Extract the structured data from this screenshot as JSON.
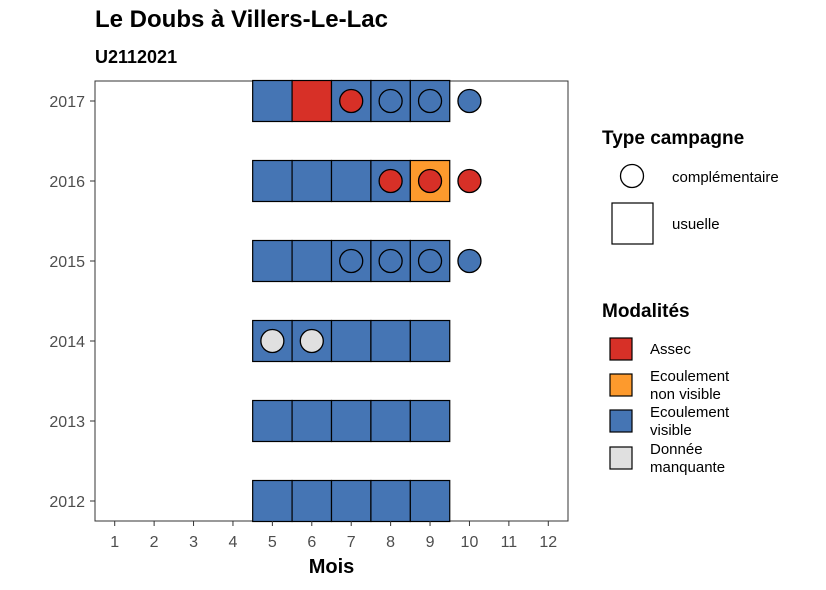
{
  "chart_data": {
    "type": "heatmap",
    "title": "Le Doubs à Villers-Le-Lac",
    "subtitle": "U2112021",
    "xlabel": "Mois",
    "ylabel": "",
    "x_ticks": [
      "1",
      "2",
      "3",
      "4",
      "5",
      "6",
      "7",
      "8",
      "9",
      "10",
      "11",
      "12"
    ],
    "y_ticks": [
      "2012",
      "2013",
      "2014",
      "2015",
      "2016",
      "2017"
    ],
    "xlim": [
      0.5,
      12.5
    ],
    "grid": false,
    "colors": {
      "Assec": "#d73027",
      "Ecoulement non visible": "#fd9a2d",
      "Ecoulement visible": "#4575b4",
      "Donnée manquante": "#e0e0e0"
    },
    "legend_type": {
      "title": "Type campagne",
      "items": [
        "complémentaire",
        "usuelle"
      ]
    },
    "legend_modalites": {
      "title": "Modalités",
      "items": [
        {
          "label": "Assec",
          "key": "Assec"
        },
        {
          "label": "Ecoulement\nnon visible",
          "key": "Ecoulement non visible"
        },
        {
          "label": "Ecoulement\nvisible",
          "key": "Ecoulement visible"
        },
        {
          "label": "Donnée\nmanquante",
          "key": "Donnée manquante"
        }
      ]
    },
    "points": [
      {
        "year": "2012",
        "month": 5,
        "type": "usuelle",
        "modalite": "Ecoulement visible"
      },
      {
        "year": "2012",
        "month": 6,
        "type": "usuelle",
        "modalite": "Ecoulement visible"
      },
      {
        "year": "2012",
        "month": 7,
        "type": "usuelle",
        "modalite": "Ecoulement visible"
      },
      {
        "year": "2012",
        "month": 8,
        "type": "usuelle",
        "modalite": "Ecoulement visible"
      },
      {
        "year": "2012",
        "month": 9,
        "type": "usuelle",
        "modalite": "Ecoulement visible"
      },
      {
        "year": "2013",
        "month": 5,
        "type": "usuelle",
        "modalite": "Ecoulement visible"
      },
      {
        "year": "2013",
        "month": 6,
        "type": "usuelle",
        "modalite": "Ecoulement visible"
      },
      {
        "year": "2013",
        "month": 7,
        "type": "usuelle",
        "modalite": "Ecoulement visible"
      },
      {
        "year": "2013",
        "month": 8,
        "type": "usuelle",
        "modalite": "Ecoulement visible"
      },
      {
        "year": "2013",
        "month": 9,
        "type": "usuelle",
        "modalite": "Ecoulement visible"
      },
      {
        "year": "2014",
        "month": 5,
        "type": "usuelle",
        "modalite": "Ecoulement visible"
      },
      {
        "year": "2014",
        "month": 6,
        "type": "usuelle",
        "modalite": "Ecoulement visible"
      },
      {
        "year": "2014",
        "month": 7,
        "type": "usuelle",
        "modalite": "Ecoulement visible"
      },
      {
        "year": "2014",
        "month": 8,
        "type": "usuelle",
        "modalite": "Ecoulement visible"
      },
      {
        "year": "2014",
        "month": 9,
        "type": "usuelle",
        "modalite": "Ecoulement visible"
      },
      {
        "year": "2014",
        "month": 5,
        "type": "complémentaire",
        "modalite": "Donnée manquante"
      },
      {
        "year": "2014",
        "month": 6,
        "type": "complémentaire",
        "modalite": "Donnée manquante"
      },
      {
        "year": "2015",
        "month": 5,
        "type": "usuelle",
        "modalite": "Ecoulement visible"
      },
      {
        "year": "2015",
        "month": 6,
        "type": "usuelle",
        "modalite": "Ecoulement visible"
      },
      {
        "year": "2015",
        "month": 7,
        "type": "usuelle",
        "modalite": "Ecoulement visible"
      },
      {
        "year": "2015",
        "month": 8,
        "type": "usuelle",
        "modalite": "Ecoulement visible"
      },
      {
        "year": "2015",
        "month": 9,
        "type": "usuelle",
        "modalite": "Ecoulement visible"
      },
      {
        "year": "2015",
        "month": 7,
        "type": "complémentaire",
        "modalite": "Ecoulement visible"
      },
      {
        "year": "2015",
        "month": 8,
        "type": "complémentaire",
        "modalite": "Ecoulement visible"
      },
      {
        "year": "2015",
        "month": 9,
        "type": "complémentaire",
        "modalite": "Ecoulement visible"
      },
      {
        "year": "2015",
        "month": 10,
        "type": "complémentaire",
        "modalite": "Ecoulement visible"
      },
      {
        "year": "2016",
        "month": 5,
        "type": "usuelle",
        "modalite": "Ecoulement visible"
      },
      {
        "year": "2016",
        "month": 6,
        "type": "usuelle",
        "modalite": "Ecoulement visible"
      },
      {
        "year": "2016",
        "month": 7,
        "type": "usuelle",
        "modalite": "Ecoulement visible"
      },
      {
        "year": "2016",
        "month": 8,
        "type": "usuelle",
        "modalite": "Ecoulement visible"
      },
      {
        "year": "2016",
        "month": 9,
        "type": "usuelle",
        "modalite": "Ecoulement non visible"
      },
      {
        "year": "2016",
        "month": 8,
        "type": "complémentaire",
        "modalite": "Assec"
      },
      {
        "year": "2016",
        "month": 9,
        "type": "complémentaire",
        "modalite": "Assec"
      },
      {
        "year": "2016",
        "month": 10,
        "type": "complémentaire",
        "modalite": "Assec"
      },
      {
        "year": "2017",
        "month": 5,
        "type": "usuelle",
        "modalite": "Ecoulement visible"
      },
      {
        "year": "2017",
        "month": 6,
        "type": "usuelle",
        "modalite": "Assec"
      },
      {
        "year": "2017",
        "month": 7,
        "type": "usuelle",
        "modalite": "Ecoulement visible"
      },
      {
        "year": "2017",
        "month": 8,
        "type": "usuelle",
        "modalite": "Ecoulement visible"
      },
      {
        "year": "2017",
        "month": 9,
        "type": "usuelle",
        "modalite": "Ecoulement visible"
      },
      {
        "year": "2017",
        "month": 7,
        "type": "complémentaire",
        "modalite": "Assec"
      },
      {
        "year": "2017",
        "month": 8,
        "type": "complémentaire",
        "modalite": "Ecoulement visible"
      },
      {
        "year": "2017",
        "month": 9,
        "type": "complémentaire",
        "modalite": "Ecoulement visible"
      },
      {
        "year": "2017",
        "month": 10,
        "type": "complémentaire",
        "modalite": "Ecoulement visible"
      }
    ]
  }
}
